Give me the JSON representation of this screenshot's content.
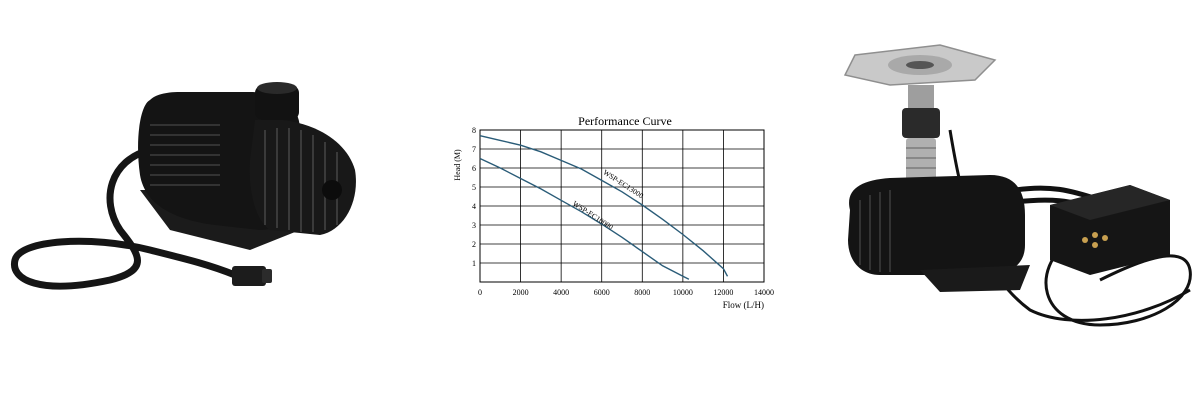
{
  "chart_data": {
    "type": "line",
    "title": "Performance Curve",
    "xlabel": "Flow (L/H)",
    "ylabel": "Head  (M)",
    "xlim": [
      0,
      14000
    ],
    "ylim": [
      0,
      8
    ],
    "x_ticks": [
      "0",
      "2000",
      "4000",
      "6000",
      "8000",
      "10000",
      "12000",
      "14000"
    ],
    "y_ticks": [
      "1",
      "2",
      "3",
      "4",
      "5",
      "6",
      "7",
      "8"
    ],
    "grid": true,
    "series": [
      {
        "name": "WSP-EC10000",
        "color": "#2a5c78",
        "x": [
          0,
          1000,
          2000,
          3000,
          4000,
          5000,
          6000,
          7000,
          8000,
          9000,
          10000,
          10300
        ],
        "y": [
          6.5,
          6.0,
          5.45,
          4.9,
          4.3,
          3.7,
          3.05,
          2.35,
          1.6,
          0.85,
          0.3,
          0.15
        ]
      },
      {
        "name": "WSP-EC13000",
        "color": "#2a5c78",
        "x": [
          0,
          1000,
          2000,
          3000,
          4000,
          5000,
          6000,
          7000,
          8000,
          9000,
          10000,
          11000,
          12000,
          12200
        ],
        "y": [
          7.7,
          7.45,
          7.2,
          6.85,
          6.4,
          5.95,
          5.35,
          4.75,
          4.05,
          3.3,
          2.5,
          1.65,
          0.7,
          0.3
        ]
      }
    ]
  },
  "images": {
    "left_photo": "submersible-pump-with-cable",
    "right_photo": "fountain-pump-with-nozzle-and-controller"
  }
}
